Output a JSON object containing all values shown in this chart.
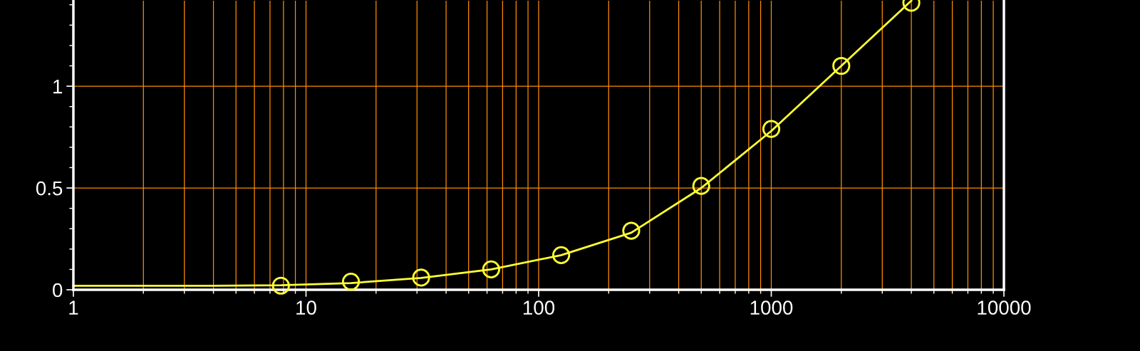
{
  "chart_data": {
    "type": "scatter",
    "log": "x",
    "xlim": [
      1,
      10000
    ],
    "xticks": [
      1,
      10,
      100,
      1000,
      10000
    ],
    "ylim": [
      0,
      1.42
    ],
    "yticks": [
      0,
      0.5,
      1
    ],
    "grid": true,
    "marker": "circle",
    "series": [
      {
        "type": "line",
        "marker": "none",
        "color": "#ffff33",
        "x": [
          1,
          4,
          7.8,
          15.6,
          31.25,
          62.5,
          125,
          250,
          500,
          1000,
          2000,
          4000
        ],
        "values": [
          0.02,
          0.02,
          0.022,
          0.033,
          0.058,
          0.1,
          0.17,
          0.28,
          0.5,
          0.78,
          1.1,
          1.42
        ]
      },
      {
        "type": "scatter",
        "color": "#ffff33",
        "x": [
          7.8,
          15.6,
          31.25,
          62.5,
          125,
          250,
          500,
          1000,
          2000,
          4000
        ],
        "values": [
          0.02,
          0.04,
          0.06,
          0.1,
          0.17,
          0.29,
          0.51,
          0.79,
          1.1,
          1.41
        ]
      }
    ]
  }
}
